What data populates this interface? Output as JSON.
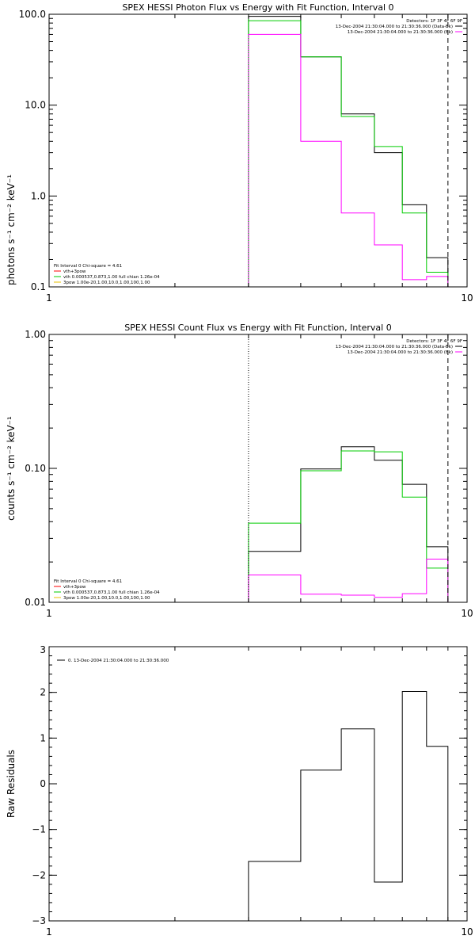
{
  "chart_data": [
    {
      "type": "line",
      "title": "SPEX HESSI Photon Flux vs Energy with Fit Function, Interval 0",
      "xlabel": "",
      "ylabel": "photons s⁻¹ cm⁻² keV⁻¹",
      "xscale": "log",
      "yscale": "log",
      "xlim": [
        1,
        10
      ],
      "ylim": [
        0.1,
        100
      ],
      "x_ticks": [
        "1",
        "10"
      ],
      "y_ticks": [
        "100.0",
        "10.0",
        "1.0",
        "0.1"
      ],
      "x_ticks_values": [
        1,
        10
      ],
      "y_ticks_values": [
        100,
        10,
        1,
        0.1
      ],
      "bin_edges": [
        3,
        4,
        5,
        6,
        7,
        8,
        9
      ],
      "series": [
        {
          "color": "#000000",
          "values": [
            95,
            34,
            8,
            3,
            0.8,
            0.21
          ]
        },
        {
          "color": "#00cc00",
          "values": [
            85,
            34,
            7.5,
            3.5,
            0.65,
            0.145
          ]
        },
        {
          "color": "#ff00ff",
          "values": [
            60,
            4,
            0.65,
            0.29,
            0.12,
            0.13
          ]
        }
      ],
      "vlines": [
        {
          "x": 3,
          "color": "#00cc00",
          "style": "dotted"
        },
        {
          "x": 9,
          "color": "#000000",
          "style": "dashed"
        }
      ],
      "legend_top_right": [
        {
          "text": "Detectors: 1F 3F 4F 6F 9F",
          "color": ""
        },
        {
          "text": "13-Dec-2004 21:30:04.000 to 21:30:36.000 (Data-Bk)",
          "color": "#000000"
        },
        {
          "text": "13-Dec-2004 21:30:04.000 to 21:30:36.000 (Bk)",
          "color": "#ff00ff"
        }
      ],
      "legend_bottom_left": [
        {
          "text": "Fit Interval 0   Chi-square = 4.61",
          "color": ""
        },
        {
          "text": "vth+3pow",
          "color": "#ff0000"
        },
        {
          "text": "vth 0.000537,0.873,1.00  full chian 1.26e-04",
          "color": "#00cc00"
        },
        {
          "text": "3pow 1.00e-20,1.00,10.0,1.00,100,1.00",
          "color": "#e8c000"
        }
      ]
    },
    {
      "type": "line",
      "title": "SPEX HESSI Count Flux vs Energy with Fit Function, Interval 0",
      "xlabel": "",
      "ylabel": "counts s⁻¹ cm⁻² keV⁻¹",
      "xscale": "log",
      "yscale": "log",
      "xlim": [
        1,
        10
      ],
      "ylim": [
        0.01,
        1
      ],
      "x_ticks": [
        "1",
        "10"
      ],
      "y_ticks": [
        "1.00",
        "0.10",
        "0.01"
      ],
      "x_ticks_values": [
        1,
        10
      ],
      "y_ticks_values": [
        1,
        0.1,
        0.01
      ],
      "bin_edges": [
        3,
        4,
        5,
        6,
        7,
        8,
        9
      ],
      "series": [
        {
          "color": "#000000",
          "values": [
            0.024,
            0.099,
            0.145,
            0.115,
            0.076,
            0.026
          ]
        },
        {
          "color": "#00cc00",
          "values": [
            0.039,
            0.096,
            0.135,
            0.133,
            0.061,
            0.018
          ]
        },
        {
          "color": "#ff00ff",
          "values": [
            0.016,
            0.0115,
            0.0113,
            0.0109,
            0.0116,
            0.021
          ]
        }
      ],
      "vlines": [
        {
          "x": 3,
          "color": "#000000",
          "style": "dotted"
        },
        {
          "x": 9,
          "color": "#000000",
          "style": "dashed"
        }
      ],
      "legend_top_right": [
        {
          "text": "Detectors: 1F 3F 4F 6F 9F",
          "color": ""
        },
        {
          "text": "13-Dec-2004 21:30:04.000 to 21:30:36.000 (Data-Bk)",
          "color": "#000000"
        },
        {
          "text": "13-Dec-2004 21:30:04.000 to 21:30:36.000 (Bk)",
          "color": "#ff00ff"
        }
      ],
      "legend_bottom_left": [
        {
          "text": "Fit Interval 0   Chi-square = 4.61",
          "color": ""
        },
        {
          "text": "vth+3pow",
          "color": "#ff0000"
        },
        {
          "text": "vth 0.000537,0.873,1.00  full chian 1.26e-04",
          "color": "#00cc00"
        },
        {
          "text": "3pow 1.00e-20,1.00,10.0,1.00,100,1.00",
          "color": "#e8c000"
        }
      ]
    },
    {
      "type": "line",
      "title": "",
      "xlabel": "",
      "ylabel": "Raw Residuals",
      "xscale": "log",
      "yscale": "linear",
      "xlim": [
        1,
        10
      ],
      "ylim": [
        -3,
        3
      ],
      "x_ticks": [
        "1",
        "10"
      ],
      "y_ticks": [
        "3",
        "2",
        "1",
        "0",
        "−1",
        "−2",
        "−3"
      ],
      "x_ticks_values": [
        1,
        10
      ],
      "y_ticks_values": [
        3,
        2,
        1,
        0,
        -1,
        -2,
        -3
      ],
      "bin_edges": [
        3,
        4,
        5,
        6,
        7,
        8,
        9
      ],
      "series": [
        {
          "color": "#000000",
          "values": [
            -1.7,
            0.3,
            1.2,
            -2.15,
            2.02,
            0.82
          ]
        }
      ],
      "vlines": [],
      "legend_top_right": [],
      "legend_bottom_left": [],
      "legend_top_left": [
        {
          "text": "0. 13-Dec-2004 21:30:04.000 to 21:30:36.000",
          "color": "#000000"
        }
      ]
    }
  ]
}
